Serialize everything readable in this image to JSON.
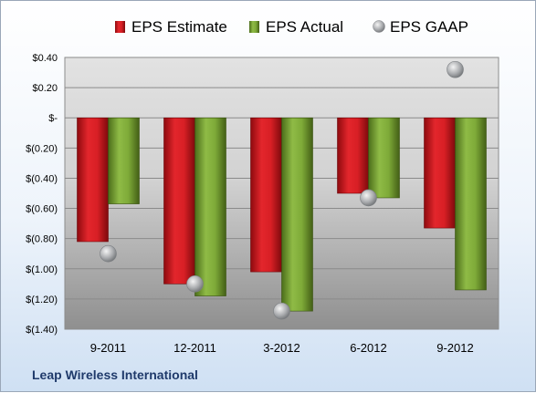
{
  "company": "Leap Wireless International",
  "chart_data": {
    "type": "bar",
    "title": "",
    "xlabel": "",
    "ylabel": "",
    "categories": [
      "9-2011",
      "12-2011",
      "3-2012",
      "6-2012",
      "9-2012"
    ],
    "ylim": [
      -1.4,
      0.4
    ],
    "yticks": [
      0.4,
      0.2,
      0,
      -0.2,
      -0.4,
      -0.6,
      -0.8,
      -1.0,
      -1.2,
      -1.4
    ],
    "ytick_labels": [
      "$0.40",
      "$0.20",
      "$-",
      "$(0.20)",
      "$(0.40)",
      "$(0.60)",
      "$(0.80)",
      "$(1.00)",
      "$(1.20)",
      "$(1.40)"
    ],
    "grid": true,
    "legend_position": "top",
    "series": [
      {
        "name": "EPS Estimate",
        "kind": "bar",
        "color": "#c0141b",
        "values": [
          -0.82,
          -1.1,
          -1.02,
          -0.5,
          -0.73
        ]
      },
      {
        "name": "EPS Actual",
        "kind": "bar",
        "color": "#6e9a2c",
        "values": [
          -0.57,
          -1.18,
          -1.28,
          -0.53,
          -1.14
        ]
      },
      {
        "name": "EPS GAAP",
        "kind": "marker",
        "color": "#a8aaad",
        "values": [
          -0.9,
          -1.1,
          -1.28,
          -0.53,
          0.32
        ]
      }
    ]
  }
}
